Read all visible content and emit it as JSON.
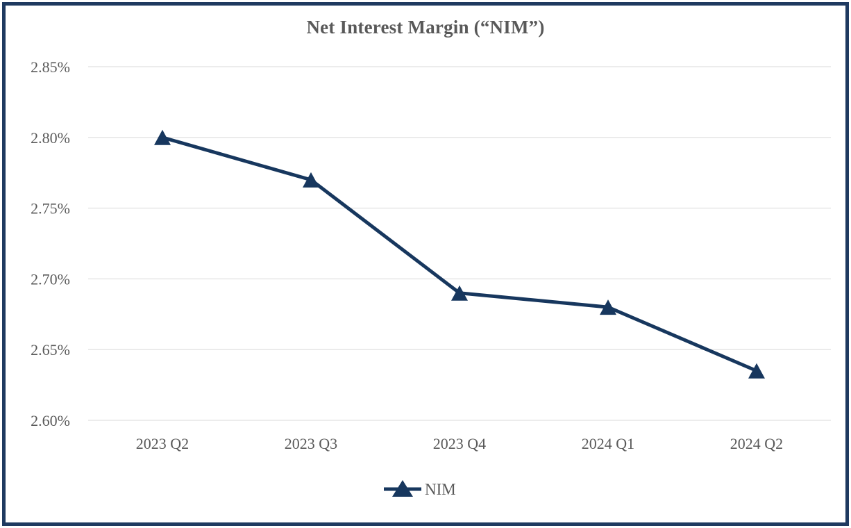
{
  "page": {
    "background": "#ffffff",
    "border_color": "#1f3a60"
  },
  "chart_data": {
    "type": "line",
    "title": "Net Interest Margin (“NIM”)",
    "title_color": "#595959",
    "text_color": "#595959",
    "categories": [
      "2023 Q2",
      "2023 Q3",
      "2023 Q4",
      "2024 Q1",
      "2024 Q2"
    ],
    "series": [
      {
        "name": "NIM",
        "values": [
          2.8,
          2.77,
          2.69,
          2.68,
          2.635
        ],
        "color": "#17375e",
        "marker": "triangle"
      }
    ],
    "ylim": [
      2.6,
      2.85
    ],
    "yticks": [
      {
        "label": "2.85%",
        "value": 2.85
      },
      {
        "label": "2.80%",
        "value": 2.8
      },
      {
        "label": "2.75%",
        "value": 2.75
      },
      {
        "label": "2.70%",
        "value": 2.7
      },
      {
        "label": "2.65%",
        "value": 2.65
      },
      {
        "label": "2.60%",
        "value": 2.6
      }
    ],
    "xlabel": "",
    "ylabel": "",
    "grid": true,
    "gridline_color": "#e6e6e6",
    "legend_position": "bottom",
    "legend": [
      {
        "label": "NIM",
        "color": "#17375e",
        "marker": "triangle-with-line"
      }
    ]
  }
}
